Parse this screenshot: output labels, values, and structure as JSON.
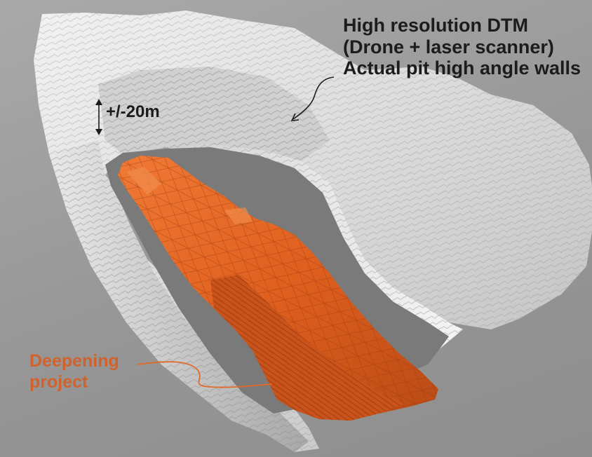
{
  "annotations": {
    "dtm": {
      "line1": "High resolution DTM",
      "line2": "(Drone + laser scanner)",
      "line3": "Actual pit high angle walls"
    },
    "height": "+/-20m",
    "deepening": {
      "line1": "Deepening",
      "line2": "project"
    }
  },
  "colors": {
    "background": "#9b9b9b",
    "terrain": "#dcdcdc",
    "pit_wall_shadow": "#6f6f6f",
    "orange_surface": "#e0601e",
    "deepening_label": "#d2622c",
    "text_dark": "#1c1c1c"
  }
}
